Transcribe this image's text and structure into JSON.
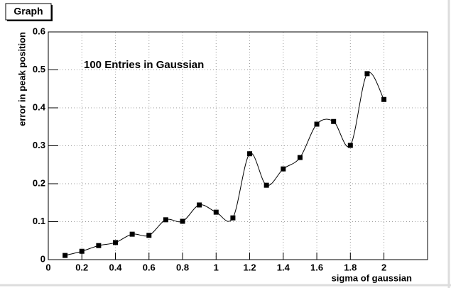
{
  "chart_data": {
    "type": "line",
    "title": "Graph",
    "annotation": "100 Entries in Gaussian",
    "x_label": "sigma of gaussian",
    "y_label": "error in peak position",
    "x": [
      0.1,
      0.2,
      0.3,
      0.4,
      0.5,
      0.6,
      0.7,
      0.8,
      0.9,
      1.0,
      1.1,
      1.2,
      1.3,
      1.4,
      1.5,
      1.6,
      1.7,
      1.8,
      1.9,
      2.0
    ],
    "series": [
      {
        "name": "error in peak position",
        "color": "#000000",
        "values": [
          0.011,
          0.022,
          0.037,
          0.045,
          0.067,
          0.064,
          0.105,
          0.101,
          0.144,
          0.125,
          0.11,
          0.279,
          0.196,
          0.239,
          0.269,
          0.357,
          0.364,
          0.301,
          0.49,
          0.422
        ]
      }
    ],
    "xlim": [
      0,
      2.26
    ],
    "xticks": [
      0,
      0.2,
      0.4,
      0.6,
      0.8,
      1,
      1.2,
      1.4,
      1.6,
      1.8,
      2
    ],
    "ylim": [
      0,
      0.6
    ],
    "yticks": [
      0,
      0.1,
      0.2,
      0.3,
      0.4,
      0.5,
      0.6
    ],
    "grid": true
  }
}
